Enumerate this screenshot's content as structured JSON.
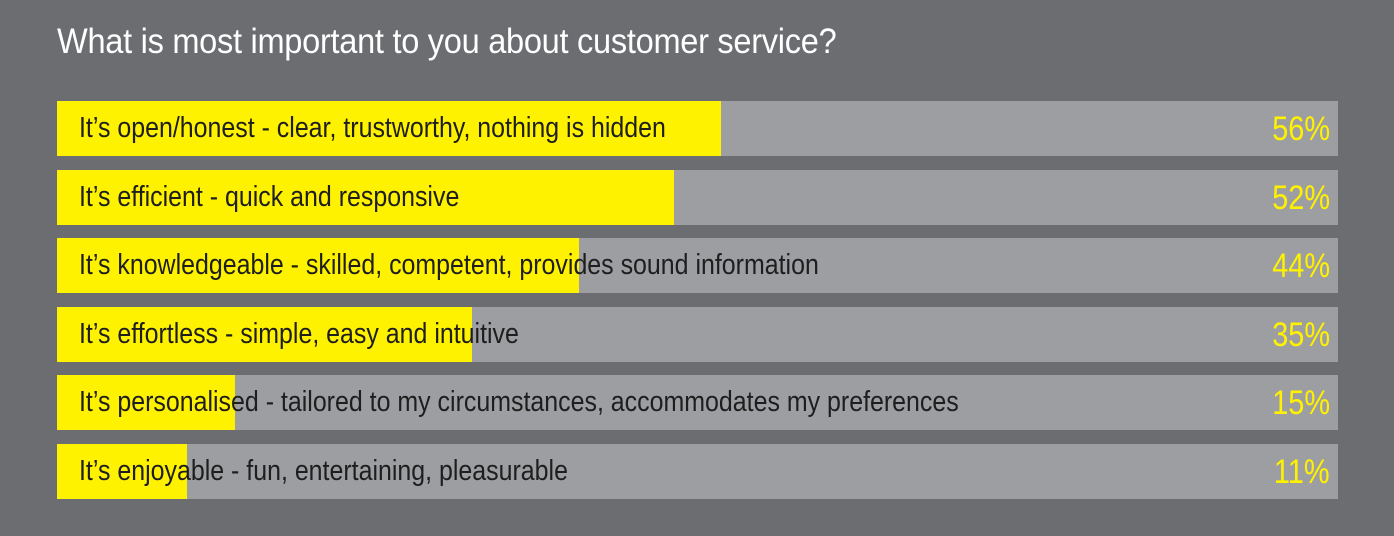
{
  "chart_data": {
    "type": "bar",
    "orientation": "horizontal",
    "title": "What is most important to you about customer service?",
    "categories": [
      "It’s open/honest - clear, trustworthy, nothing is hidden",
      "It’s efficient - quick and responsive",
      "It’s knowledgeable - skilled, competent, provides sound information",
      "It’s effortless - simple, easy and intuitive",
      "It’s personalised - tailored to my circumstances, accommodates my preferences",
      "It’s enjoyable - fun, entertaining, pleasurable"
    ],
    "values": [
      56,
      52,
      44,
      35,
      15,
      11
    ],
    "value_labels": [
      "56%",
      "52%",
      "44%",
      "35%",
      "15%",
      "11%"
    ],
    "xlim": [
      0,
      108
    ],
    "unit": "%",
    "grid": false,
    "legend": "none"
  },
  "colors": {
    "background": "#6c6d71",
    "track": "#9d9ea2",
    "bar": "#fff200",
    "label_text": "#1e1e1e",
    "value_text": "#fff200",
    "title_text": "#ffffff"
  }
}
